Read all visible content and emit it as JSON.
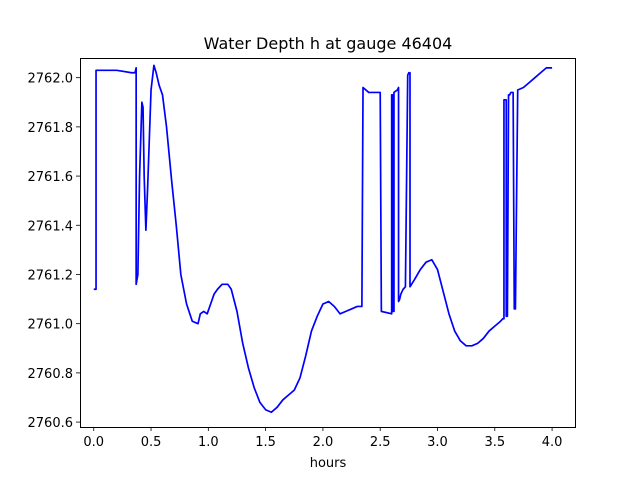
{
  "chart_data": {
    "type": "line",
    "title": "Water Depth h at gauge 46404",
    "xlabel": "hours",
    "ylabel": "",
    "xlim": [
      -0.12,
      4.2
    ],
    "ylim": [
      2760.58,
      2762.08
    ],
    "xticks": [
      0.0,
      0.5,
      1.0,
      1.5,
      2.0,
      2.5,
      3.0,
      3.5,
      4.0
    ],
    "xtick_labels": [
      "0.0",
      "0.5",
      "1.0",
      "1.5",
      "2.0",
      "2.5",
      "3.0",
      "3.5",
      "4.0"
    ],
    "yticks": [
      2760.6,
      2760.8,
      2761.0,
      2761.2,
      2761.4,
      2761.6,
      2761.8,
      2762.0
    ],
    "ytick_labels": [
      "2760.6",
      "2760.8",
      "2761.0",
      "2761.2",
      "2761.4",
      "2761.6",
      "2761.8",
      "2762.0"
    ],
    "grid": false,
    "series": [
      {
        "color": "#0000ff",
        "x": [
          0.0,
          0.02,
          0.02,
          0.2,
          0.33,
          0.36,
          0.37,
          0.37,
          0.385,
          0.4,
          0.42,
          0.43,
          0.44,
          0.455,
          0.47,
          0.5,
          0.525,
          0.545,
          0.57,
          0.6,
          0.635,
          0.68,
          0.72,
          0.76,
          0.81,
          0.86,
          0.91,
          0.93,
          0.96,
          0.99,
          1.02,
          1.05,
          1.08,
          1.12,
          1.17,
          1.2,
          1.25,
          1.3,
          1.35,
          1.4,
          1.45,
          1.5,
          1.55,
          1.6,
          1.65,
          1.7,
          1.75,
          1.8,
          1.85,
          1.9,
          1.95,
          2.0,
          2.05,
          2.1,
          2.15,
          2.2,
          2.25,
          2.3,
          2.34,
          2.35,
          2.35,
          2.4,
          2.45,
          2.5,
          2.51,
          2.51,
          2.6,
          2.6,
          2.61,
          2.61,
          2.62,
          2.62,
          2.65,
          2.66,
          2.66,
          2.67,
          2.68,
          2.69,
          2.7,
          2.72,
          2.74,
          2.74,
          2.75,
          2.76,
          2.76,
          2.8,
          2.85,
          2.9,
          2.95,
          3.0,
          3.05,
          3.1,
          3.15,
          3.2,
          3.25,
          3.3,
          3.35,
          3.4,
          3.45,
          3.5,
          3.55,
          3.57,
          3.58,
          3.58,
          3.59,
          3.6,
          3.6,
          3.61,
          3.62,
          3.63,
          3.64,
          3.65,
          3.66,
          3.67,
          3.68,
          3.68,
          3.7,
          3.75,
          3.8,
          3.85,
          3.9,
          3.95,
          4.0
        ],
        "y": [
          2761.14,
          2761.14,
          2762.03,
          2762.03,
          2762.02,
          2762.02,
          2762.04,
          2761.16,
          2761.2,
          2761.6,
          2761.9,
          2761.88,
          2761.6,
          2761.38,
          2761.55,
          2761.95,
          2762.05,
          2762.02,
          2761.97,
          2761.93,
          2761.8,
          2761.58,
          2761.4,
          2761.2,
          2761.08,
          2761.01,
          2761.0,
          2761.04,
          2761.05,
          2761.04,
          2761.08,
          2761.12,
          2761.14,
          2761.16,
          2761.16,
          2761.14,
          2761.05,
          2760.92,
          2760.82,
          2760.74,
          2760.68,
          2760.65,
          2760.64,
          2760.66,
          2760.69,
          2760.71,
          2760.73,
          2760.78,
          2760.87,
          2760.97,
          2761.03,
          2761.08,
          2761.09,
          2761.07,
          2761.04,
          2761.05,
          2761.06,
          2761.07,
          2761.07,
          2761.96,
          2761.96,
          2761.94,
          2761.94,
          2761.94,
          2761.05,
          2761.05,
          2761.04,
          2761.93,
          2761.93,
          2761.05,
          2761.05,
          2761.94,
          2761.95,
          2761.96,
          2761.09,
          2761.1,
          2761.12,
          2761.13,
          2761.14,
          2761.15,
          2762.01,
          2762.01,
          2762.02,
          2762.02,
          2761.15,
          2761.18,
          2761.22,
          2761.25,
          2761.26,
          2761.22,
          2761.13,
          2761.04,
          2760.97,
          2760.93,
          2760.91,
          2760.91,
          2760.92,
          2760.94,
          2760.97,
          2760.99,
          2761.01,
          2761.02,
          2761.02,
          2761.91,
          2761.91,
          2761.91,
          2761.03,
          2761.03,
          2761.93,
          2761.93,
          2761.94,
          2761.94,
          2761.94,
          2761.06,
          2761.06,
          2761.06,
          2761.95,
          2761.96,
          2761.98,
          2762.0,
          2762.02,
          2762.04,
          2762.04
        ]
      }
    ]
  }
}
